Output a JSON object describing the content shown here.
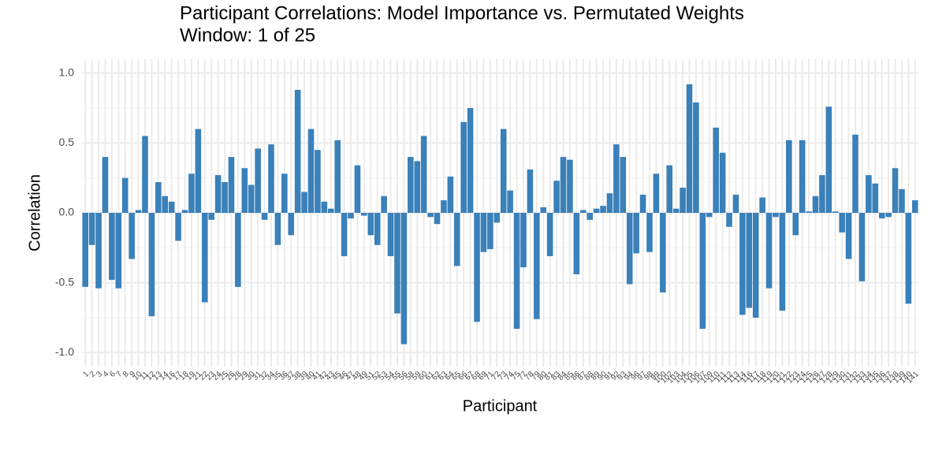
{
  "chart_data": {
    "type": "bar",
    "title": "Participant Correlations: Model Importance vs. Permutated Weights",
    "subtitle": "Window: 1 of 25",
    "x_label": "Participant",
    "y_label": "Correlation",
    "categories": [
      "1",
      "2",
      "3",
      "4",
      "6",
      "7",
      "8",
      "9",
      "10",
      "11",
      "12",
      "13",
      "14",
      "16",
      "17",
      "18",
      "19",
      "21",
      "22",
      "23",
      "24",
      "25",
      "26",
      "28",
      "29",
      "30",
      "31",
      "32",
      "34",
      "35",
      "36",
      "37",
      "38",
      "39",
      "40",
      "41",
      "42",
      "43",
      "45",
      "46",
      "47",
      "48",
      "49",
      "51",
      "52",
      "53",
      "54",
      "55",
      "56",
      "58",
      "59",
      "60",
      "61",
      "62",
      "63",
      "64",
      "65",
      "66",
      "67",
      "68",
      "69",
      "71",
      "72",
      "73",
      "74",
      "75",
      "77",
      "78",
      "79",
      "80",
      "81",
      "83",
      "84",
      "85",
      "86",
      "87",
      "88",
      "89",
      "90",
      "91",
      "92",
      "93",
      "94",
      "96",
      "97",
      "98",
      "99",
      "100",
      "102",
      "103",
      "104",
      "105",
      "106",
      "107",
      "109",
      "110",
      "111",
      "112",
      "113",
      "114",
      "116",
      "117",
      "118",
      "119",
      "120",
      "121",
      "122",
      "123",
      "124",
      "125",
      "126",
      "127",
      "128",
      "129",
      "130",
      "131",
      "132",
      "133",
      "134",
      "135",
      "136",
      "137",
      "138",
      "139",
      "140",
      "141"
    ],
    "values": [
      -0.53,
      -0.23,
      -0.54,
      0.4,
      -0.48,
      -0.54,
      0.25,
      -0.33,
      0.02,
      0.55,
      -0.74,
      0.22,
      0.12,
      0.08,
      -0.2,
      0.02,
      0.28,
      0.6,
      -0.64,
      -0.05,
      0.27,
      0.22,
      0.4,
      -0.53,
      0.32,
      0.2,
      0.46,
      -0.05,
      0.49,
      -0.23,
      0.28,
      -0.16,
      0.88,
      0.15,
      0.6,
      0.45,
      0.08,
      0.03,
      0.52,
      -0.31,
      -0.04,
      0.34,
      -0.02,
      -0.16,
      -0.23,
      0.12,
      -0.31,
      -0.72,
      -0.94,
      0.4,
      0.37,
      0.55,
      -0.03,
      -0.08,
      0.09,
      0.26,
      -0.38,
      0.65,
      0.75,
      -0.78,
      -0.28,
      -0.26,
      -0.07,
      0.6,
      0.16,
      -0.83,
      -0.39,
      0.31,
      -0.76,
      0.04,
      -0.31,
      0.23,
      0.4,
      0.38,
      -0.44,
      0.02,
      -0.05,
      0.03,
      0.05,
      0.14,
      0.49,
      0.4,
      -0.51,
      -0.29,
      0.13,
      -0.28,
      0.28,
      -0.57,
      0.34,
      0.03,
      0.18,
      0.92,
      0.79,
      -0.83,
      -0.03,
      0.61,
      0.43,
      -0.1,
      0.13,
      -0.73,
      -0.68,
      -0.75,
      0.11,
      -0.54,
      -0.03,
      -0.7,
      0.52,
      -0.16,
      0.52,
      0.01,
      0.12,
      0.27,
      0.76,
      0.01,
      -0.14,
      -0.33,
      0.56,
      -0.49,
      0.27,
      0.21,
      -0.04,
      -0.03,
      0.32,
      0.17,
      -0.65,
      0.09
    ],
    "color": "#3a80b9",
    "ylim": [
      -1.1,
      1.1
    ],
    "yticks": [
      {
        "value": -1,
        "label": "-1.0"
      },
      {
        "value": -0.5,
        "label": "-0.5"
      },
      {
        "value": 0,
        "label": "0.0"
      },
      {
        "value": 0.5,
        "label": "0.5"
      },
      {
        "value": 1,
        "label": "1.0"
      }
    ],
    "grid": true
  }
}
